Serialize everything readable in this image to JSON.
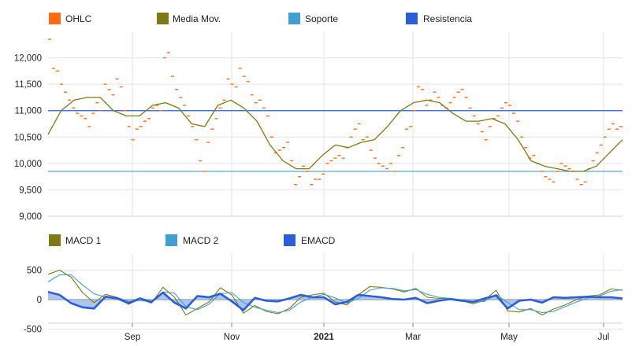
{
  "chart_data": [
    {
      "type": "line",
      "chart_kind": "ohlc-with-overlays",
      "legend_position": "top",
      "grid": true,
      "ylim": [
        9000,
        12500
      ],
      "y_ticks": [
        "9,000",
        "9,500",
        "10,000",
        "10,500",
        "11,000",
        "11,500",
        "12,000"
      ],
      "y_tick_values": [
        9000,
        9500,
        10000,
        10500,
        11000,
        11500,
        12000
      ],
      "series": [
        {
          "name": "OHLC",
          "color": "#ff6a13",
          "style": "ohlc-ticks",
          "values": [
            12350,
            11800,
            11750,
            11500,
            11350,
            11200,
            11050,
            10950,
            10900,
            10850,
            10700,
            10950,
            11150,
            11000,
            11500,
            11400,
            11300,
            11600,
            11450,
            11000,
            10700,
            10450,
            10650,
            10700,
            10800,
            10850,
            11050,
            11100,
            11000,
            12000,
            12100,
            11650,
            11400,
            11250,
            11100,
            10900,
            10700,
            10450,
            10050,
            9850,
            10400,
            10650,
            10850,
            11050,
            11200,
            11600,
            11500,
            11450,
            11800,
            11650,
            11550,
            11300,
            11150,
            11200,
            11050,
            10900,
            10500,
            10200,
            10250,
            10300,
            10400,
            10050,
            9600,
            9750,
            9950,
            9850,
            9600,
            9700,
            9700,
            9800,
            10000,
            10050,
            10100,
            10150,
            10100,
            10300,
            10500,
            10650,
            10750,
            10450,
            10500,
            10250,
            10100,
            10000,
            9950,
            9900,
            10000,
            9850,
            10150,
            10300,
            10650,
            10700,
            11000,
            11450,
            11400,
            11100,
            11200,
            11350,
            11250,
            11100,
            11050,
            11150,
            11250,
            11350,
            11400,
            11250,
            11050,
            10900,
            10750,
            10600,
            10450,
            10700,
            10850,
            10900,
            11050,
            11150,
            11100,
            10950,
            10800,
            10500,
            10300,
            10100,
            10150,
            10000,
            9850,
            9750,
            9700,
            9650,
            9850,
            10000,
            9950,
            9900,
            9850,
            9700,
            9600,
            9650,
            9900,
            10050,
            10200,
            10350,
            10500,
            10650,
            10750,
            10650,
            10700
          ]
        },
        {
          "name": "Media Mov.",
          "color": "#7b7a14",
          "style": "line",
          "values": [
            10550,
            11000,
            11200,
            11250,
            11250,
            11000,
            10900,
            10900,
            11100,
            11150,
            11050,
            10750,
            10700,
            11100,
            11200,
            11050,
            10800,
            10350,
            10050,
            9900,
            9900,
            10150,
            10350,
            10300,
            10400,
            10450,
            10700,
            11000,
            11150,
            11200,
            11150,
            10950,
            10800,
            10800,
            10850,
            10750,
            10450,
            10050,
            9950,
            9900,
            9850,
            9850,
            9950,
            10200,
            10450
          ]
        },
        {
          "name": "Soporte",
          "color": "#40a0d0",
          "style": "horizontal",
          "level": 9850
        },
        {
          "name": "Resistencia",
          "color": "#2a5fd6",
          "style": "horizontal",
          "level": 11000
        }
      ]
    },
    {
      "type": "line",
      "chart_kind": "macd",
      "legend_position": "top",
      "grid": true,
      "ylim": [
        -600,
        600
      ],
      "y_ticks": [
        "500",
        "0",
        "-500"
      ],
      "y_tick_values": [
        500,
        0,
        -500
      ],
      "x_ticks": [
        "Sep",
        "Nov",
        "2021",
        "Mar",
        "May",
        "Jul"
      ],
      "series": [
        {
          "name": "MACD 1",
          "color": "#7b7a14",
          "style": "line",
          "values": [
            430,
            500,
            380,
            120,
            -50,
            90,
            40,
            -80,
            10,
            -60,
            210,
            40,
            -260,
            -150,
            -40,
            200,
            80,
            -230,
            -100,
            -200,
            -240,
            -150,
            40,
            80,
            110,
            -40,
            -90,
            80,
            220,
            210,
            180,
            130,
            190,
            40,
            20,
            20,
            -20,
            -70,
            -10,
            160,
            -190,
            -210,
            -150,
            -260,
            -160,
            -90,
            0,
            60,
            80,
            180,
            160
          ]
        },
        {
          "name": "MACD 2",
          "color": "#40a0d0",
          "style": "line",
          "values": [
            300,
            420,
            420,
            250,
            100,
            40,
            40,
            -30,
            -20,
            -30,
            130,
            110,
            -120,
            -170,
            -80,
            100,
            120,
            -50,
            -130,
            -180,
            -220,
            -180,
            -40,
            40,
            90,
            30,
            -60,
            20,
            160,
            200,
            190,
            150,
            170,
            90,
            40,
            20,
            0,
            -40,
            -30,
            90,
            -50,
            -170,
            -170,
            -220,
            -200,
            -120,
            -40,
            30,
            60,
            140,
            170
          ]
        },
        {
          "name": "EMACD",
          "color": "#2a5fd6",
          "style": "line-filled",
          "values": [
            130,
            80,
            -60,
            -130,
            -150,
            50,
            20,
            -60,
            20,
            -40,
            120,
            -50,
            -150,
            60,
            40,
            100,
            -30,
            -180,
            30,
            -20,
            -30,
            20,
            80,
            40,
            40,
            -80,
            -40,
            80,
            60,
            40,
            10,
            0,
            30,
            -60,
            -20,
            10,
            -20,
            -40,
            20,
            70,
            -150,
            -20,
            0,
            -50,
            40,
            30,
            40,
            50,
            40,
            40,
            20
          ]
        }
      ]
    }
  ]
}
